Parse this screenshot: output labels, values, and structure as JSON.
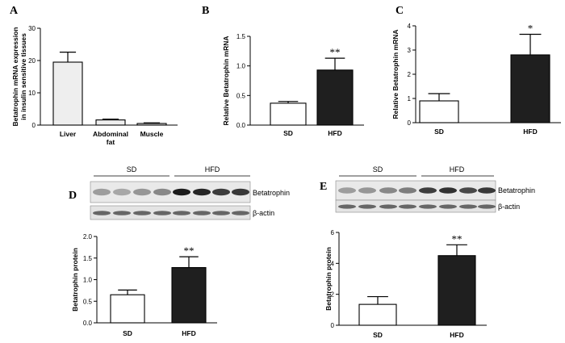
{
  "panels": {
    "A": {
      "letter": "A"
    },
    "B": {
      "letter": "B"
    },
    "C": {
      "letter": "C"
    },
    "D": {
      "letter": "D"
    },
    "E": {
      "letter": "E"
    }
  },
  "blots": {
    "D": {
      "group_labels": [
        "SD",
        "HFD"
      ],
      "band_labels": [
        "Betatrophin",
        "β-actin"
      ]
    },
    "E": {
      "group_labels": [
        "SD",
        "HFD"
      ],
      "band_labels": [
        "Betatrophin",
        "β-actin"
      ]
    }
  },
  "colors": {
    "white_bar": "#ffffff",
    "black_bar": "#1f1f1f",
    "light_bar": "#eeeeee",
    "axis": "#000000"
  },
  "chart_data": [
    {
      "panel": "A",
      "type": "bar",
      "categories": [
        "Liver",
        "Abdominal fat",
        "Muscle"
      ],
      "values": [
        19.5,
        1.6,
        0.5
      ],
      "errors": [
        3.1,
        0.25,
        0.2
      ],
      "ylabel": "Betatrophin mRNA expression in insulin sensitive tissues",
      "ylim": [
        0,
        30
      ],
      "yticks": [
        0,
        10,
        20,
        30
      ],
      "sig": [
        "",
        "",
        ""
      ]
    },
    {
      "panel": "B",
      "type": "bar",
      "categories": [
        "SD",
        "HFD"
      ],
      "values": [
        0.37,
        0.93
      ],
      "errors": [
        0.03,
        0.2
      ],
      "ylabel": "Relative Betatrophin mRNA",
      "ylim": [
        0,
        1.5
      ],
      "yticks": [
        0.0,
        0.5,
        1.0,
        1.5
      ],
      "sig": [
        "",
        "**"
      ]
    },
    {
      "panel": "C",
      "type": "bar",
      "categories": [
        "SD",
        "HFD"
      ],
      "values": [
        0.9,
        2.8
      ],
      "errors": [
        0.3,
        0.85
      ],
      "ylabel": "Relative Betatrophin mRNA",
      "ylim": [
        0,
        4
      ],
      "yticks": [
        0,
        1,
        2,
        3,
        4
      ],
      "sig": [
        "",
        "*"
      ]
    },
    {
      "panel": "D",
      "type": "bar",
      "categories": [
        "SD",
        "HFD"
      ],
      "values": [
        0.65,
        1.28
      ],
      "errors": [
        0.11,
        0.25
      ],
      "ylabel": "Betatrophin protein",
      "ylim": [
        0,
        2.0
      ],
      "yticks": [
        0.0,
        0.5,
        1.0,
        1.5,
        2.0
      ],
      "sig": [
        "",
        "**"
      ]
    },
    {
      "panel": "E",
      "type": "bar",
      "categories": [
        "SD",
        "HFD"
      ],
      "values": [
        1.35,
        4.5
      ],
      "errors": [
        0.5,
        0.7
      ],
      "ylabel": "Betatrophin protein",
      "ylim": [
        0,
        6
      ],
      "yticks": [
        0,
        2,
        4,
        6
      ],
      "sig": [
        "",
        "**"
      ]
    }
  ]
}
